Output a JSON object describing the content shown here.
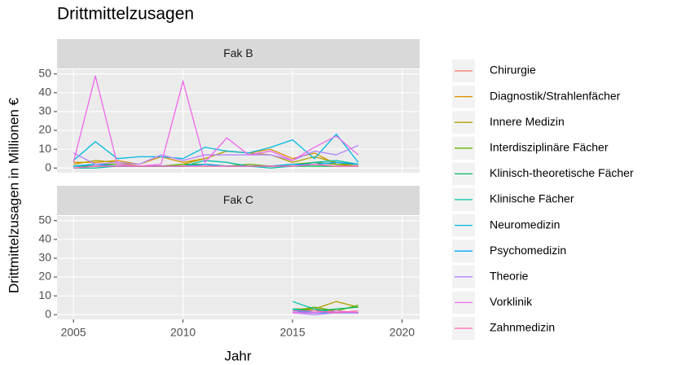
{
  "chart_data": {
    "type": "line",
    "title": "Drittmittelzusagen",
    "x_label": "Jahr",
    "y_label": "Drittmittelzusagen in Millionen €",
    "facets": [
      "Fak B",
      "Fak C"
    ],
    "x": [
      2005,
      2006,
      2007,
      2008,
      2009,
      2010,
      2011,
      2012,
      2013,
      2014,
      2015,
      2016,
      2017,
      2018
    ],
    "xlim": [
      2004.25,
      2020.8
    ],
    "xticks": [
      2005,
      2010,
      2015,
      2020
    ],
    "ylim": [
      -2.5,
      52.5
    ],
    "yticks": [
      0,
      10,
      20,
      30,
      40,
      50
    ],
    "grid": true,
    "legend": "right",
    "series": [
      {
        "name": "Chirurgie",
        "color": "#F8766D",
        "values": [
          [
            1,
            1,
            1,
            1,
            1,
            1,
            2,
            1,
            1,
            1,
            1,
            2,
            1,
            1
          ],
          [
            null,
            null,
            null,
            null,
            null,
            null,
            null,
            null,
            null,
            null,
            1,
            1,
            2,
            1
          ]
        ]
      },
      {
        "name": "Diagnostik/Strahlenfächer",
        "color": "#DB8E00",
        "values": [
          [
            3,
            3,
            4,
            2,
            6,
            3,
            5,
            9,
            8,
            10,
            5,
            8,
            2,
            1
          ],
          [
            null,
            null,
            null,
            null,
            null,
            null,
            null,
            null,
            null,
            null,
            2,
            3,
            2,
            1
          ]
        ]
      },
      {
        "name": "Innere Medizin",
        "color": "#AEA200",
        "values": [
          [
            2,
            4,
            3,
            1,
            1,
            2,
            5,
            9,
            8,
            7,
            3,
            6,
            3,
            2
          ],
          [
            null,
            null,
            null,
            null,
            null,
            null,
            null,
            null,
            null,
            null,
            3,
            3,
            7,
            4
          ]
        ]
      },
      {
        "name": "Interdisziplinäre Fächer",
        "color": "#64B200",
        "values": [
          [
            1,
            2,
            2,
            1,
            1,
            2,
            2,
            1,
            2,
            1,
            2,
            3,
            2,
            2
          ],
          [
            null,
            null,
            null,
            null,
            null,
            null,
            null,
            null,
            null,
            null,
            2,
            4,
            2,
            5
          ]
        ]
      },
      {
        "name": "Klinisch-theoretische Fächer",
        "color": "#00BD5C",
        "values": [
          [
            1,
            1,
            1,
            1,
            1,
            1,
            1,
            1,
            1,
            1,
            1,
            1,
            1,
            1
          ],
          [
            null,
            null,
            null,
            null,
            null,
            null,
            null,
            null,
            null,
            null,
            3,
            2,
            3,
            4
          ]
        ]
      },
      {
        "name": "Klinische Fächer",
        "color": "#00C1A7",
        "values": [
          [
            0,
            0,
            1,
            1,
            1,
            1,
            4,
            3,
            1,
            0,
            1,
            3,
            4,
            2
          ],
          [
            null,
            null,
            null,
            null,
            null,
            null,
            null,
            null,
            null,
            null,
            7,
            3,
            1,
            1
          ]
        ]
      },
      {
        "name": "Neuromedizin",
        "color": "#00BADE",
        "values": [
          [
            4,
            14,
            5,
            6,
            6,
            5,
            11,
            9,
            8,
            11,
            15,
            5,
            18,
            3
          ],
          [
            null,
            null,
            null,
            null,
            null,
            null,
            null,
            null,
            null,
            null,
            3,
            1,
            1,
            1
          ]
        ]
      },
      {
        "name": "Psychomedizin",
        "color": "#00A6FF",
        "values": [
          [
            1,
            2,
            1,
            1,
            1,
            1,
            2,
            1,
            1,
            1,
            2,
            2,
            3,
            2
          ],
          [
            null,
            null,
            null,
            null,
            null,
            null,
            null,
            null,
            null,
            null,
            2,
            1,
            1,
            1
          ]
        ]
      },
      {
        "name": "Theorie",
        "color": "#B385FF",
        "values": [
          [
            8,
            2,
            3,
            2,
            7,
            4,
            7,
            7,
            7,
            7,
            4,
            9,
            7,
            12
          ],
          [
            null,
            null,
            null,
            null,
            null,
            null,
            null,
            null,
            null,
            null,
            1,
            0,
            1,
            1
          ]
        ]
      },
      {
        "name": "Vorklinik",
        "color": "#EF67EB",
        "values": [
          [
            3,
            49,
            2,
            1,
            2,
            46,
            3,
            16,
            7,
            9,
            4,
            11,
            17,
            7
          ],
          [
            null,
            null,
            null,
            null,
            null,
            null,
            null,
            null,
            null,
            null,
            1,
            1,
            2,
            1
          ]
        ]
      },
      {
        "name": "Zahnmedizin",
        "color": "#FF63B6",
        "values": [
          [
            0,
            1,
            1,
            1,
            1,
            1,
            1,
            1,
            1,
            1,
            1,
            2,
            1,
            1
          ],
          [
            null,
            null,
            null,
            null,
            null,
            null,
            null,
            null,
            null,
            null,
            2,
            2,
            1,
            2
          ]
        ]
      }
    ]
  }
}
